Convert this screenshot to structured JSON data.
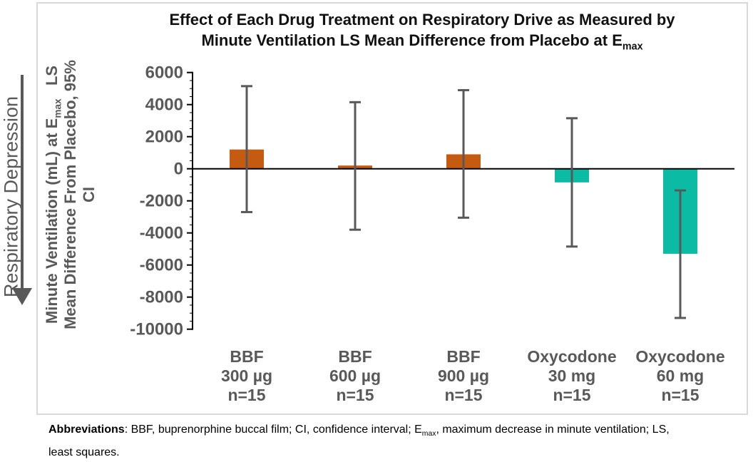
{
  "title": {
    "line1": "Effect of Each Drug Treatment on Respiratory Drive as Measured by",
    "line2_prefix": "Minute Ventilation LS Mean Difference from Placebo at E",
    "line2_sub": "max"
  },
  "side_annotation": {
    "label": "Respiratory Depression"
  },
  "y_axis_title": {
    "line1_prefix": "Minute Ventilation (mL) at E",
    "line1_sub": "max",
    "line1_suffix": "   LS",
    "line2": "Mean Difference From Placebo, 95%",
    "line3": "CI"
  },
  "chart_data": {
    "type": "bar",
    "title": "Effect of Each Drug Treatment on Respiratory Drive as Measured by Minute Ventilation LS Mean Difference from Placebo at Emax",
    "ylabel": "Minute Ventilation (mL) at Emax LS Mean Difference From Placebo, 95% CI",
    "xlabel": "",
    "ylim": [
      -10000,
      6000
    ],
    "ytick_interval": 2000,
    "minor_tick_interval": 500,
    "ytick_labels": [
      "6000",
      "4000",
      "2000",
      "0",
      "-2000",
      "-4000",
      "-6000",
      "-8000",
      "-10000"
    ],
    "grid": false,
    "legend_position": "none",
    "categories": [
      [
        "BBF",
        "300 µg",
        "n=15"
      ],
      [
        "BBF",
        "600 µg",
        "n=15"
      ],
      [
        "BBF",
        "900 µg",
        "n=15"
      ],
      [
        "Oxycodone",
        "30 mg",
        "n=15"
      ],
      [
        "Oxycodone",
        "60 mg",
        "n=15"
      ]
    ],
    "series": [
      {
        "name": "Minute ventilation LS mean difference from placebo at Emax (mL)",
        "values": [
          1200,
          200,
          900,
          -850,
          -5300
        ]
      }
    ],
    "error_bars": {
      "ci_low": [
        -2700,
        -3800,
        -3050,
        -4850,
        -9300
      ],
      "ci_high": [
        5150,
        4150,
        4900,
        3150,
        -1350
      ]
    },
    "bar_colors": [
      "#C55A11",
      "#C55A11",
      "#C55A11",
      "#0CBBA3",
      "#0CBBA3"
    ],
    "colors": {
      "bbf_orange": "#C55A11",
      "oxycodone_teal": "#0CBBA3",
      "error_bar": "#595959",
      "axis": "#000000",
      "label_gray": "#595959"
    }
  },
  "footnote": {
    "bold_label": "Abbreviations",
    "part1": ": BBF, buprenorphine buccal film; CI, confidence interval; E",
    "sub": "max",
    "part2": ", maximum decrease in minute ventilation; LS,",
    "line2": "least squares."
  }
}
